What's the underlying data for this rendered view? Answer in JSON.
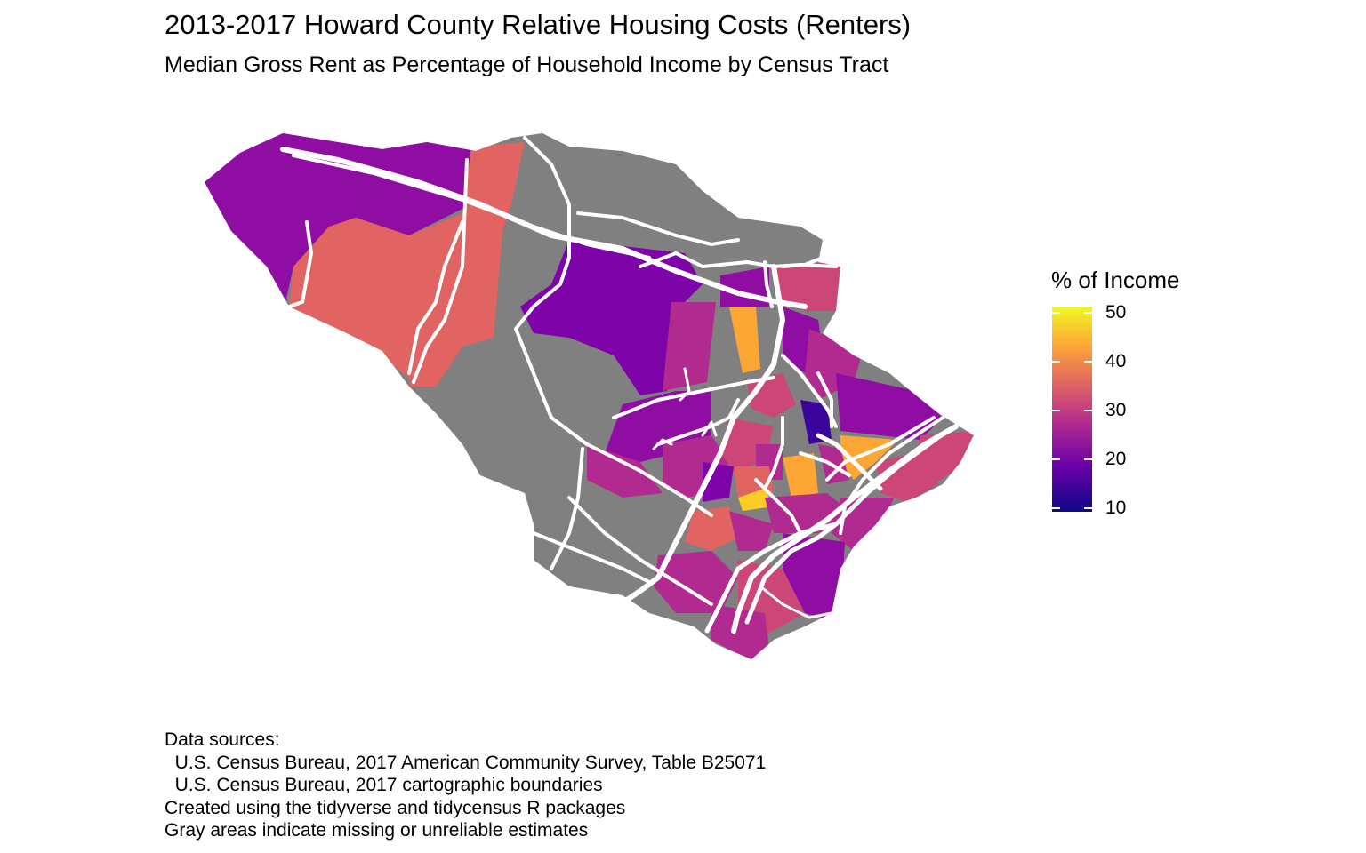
{
  "title": "2013-2017 Howard County Relative Housing Costs (Renters)",
  "subtitle": "Median Gross Rent as Percentage of Household Income by Census Tract",
  "legend": {
    "title": "% of Income",
    "ticks": [
      "50",
      "40",
      "30",
      "20",
      "10"
    ],
    "scale": "plasma",
    "range": [
      10,
      52
    ]
  },
  "colors": {
    "missing": "#808080",
    "roads": "#ffffff",
    "pct_14": "#3b049a",
    "pct_20": "#7e03a8",
    "pct_24": "#900da4",
    "pct_29": "#b12a90",
    "pct_33": "#cc4778",
    "pct_37": "#e16462",
    "pct_42": "#fca636",
    "pct_48": "#fcce25"
  },
  "caption_lines": [
    "Data sources:",
    "  U.S. Census Bureau, 2017 American Community Survey, Table B25071",
    "  U.S. Census Bureau, 2017 cartographic boundaries",
    "Created using the tidyverse and tidycensus R packages",
    "Gray areas indicate missing or unreliable estimates"
  ]
}
